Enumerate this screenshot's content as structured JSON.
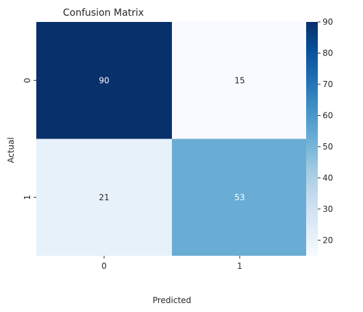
{
  "chart_data": {
    "type": "heatmap",
    "title": "Confusion Matrix",
    "xlabel": "Predicted",
    "ylabel": "Actual",
    "x_categories": [
      "0",
      "1"
    ],
    "y_categories": [
      "0",
      "1"
    ],
    "values": [
      [
        90,
        15
      ],
      [
        21,
        53
      ]
    ],
    "colormap": "Blues",
    "vmin": 15,
    "vmax": 90,
    "colorbar_ticks": [
      20,
      30,
      40,
      50,
      60,
      70,
      80,
      90
    ],
    "annotation_colors": {
      "light_cells": "#262626",
      "dark_cells": "#ffffff"
    }
  }
}
